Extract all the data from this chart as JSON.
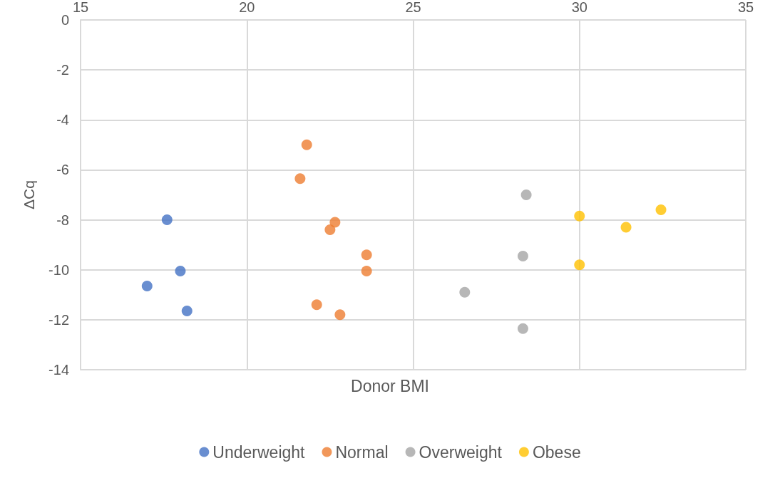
{
  "chart_data": {
    "type": "scatter",
    "xlabel": "Donor BMI",
    "ylabel": "ΔCq",
    "xlim": [
      15,
      35
    ],
    "xticks": [
      15,
      20,
      25,
      30,
      35
    ],
    "ylim": [
      -14,
      0
    ],
    "yticks": [
      -14,
      -12,
      -10,
      -8,
      -6,
      -4,
      -2,
      0
    ],
    "grid": true,
    "legend": "bottom",
    "marker": "circle",
    "series": [
      {
        "name": "Underweight",
        "color": "#4472c4",
        "x": [
          17.6,
          18.0,
          17.0,
          18.2
        ],
        "values": [
          -8.0,
          -10.05,
          -10.65,
          -11.65
        ]
      },
      {
        "name": "Normal",
        "color": "#ed7d31",
        "x": [
          21.8,
          21.6,
          22.65,
          22.5,
          23.6,
          23.6,
          22.1,
          22.8
        ],
        "values": [
          -5.0,
          -6.35,
          -8.1,
          -8.4,
          -9.4,
          -10.05,
          -11.4,
          -11.8
        ]
      },
      {
        "name": "Overweight",
        "color": "#a5a5a5",
        "x": [
          28.4,
          28.3,
          26.55,
          28.3
        ],
        "values": [
          -7.0,
          -9.45,
          -10.9,
          -12.35
        ]
      },
      {
        "name": "Obese",
        "color": "#ffc000",
        "x": [
          30.0,
          32.45,
          31.4,
          30.0
        ],
        "values": [
          -7.85,
          -7.6,
          -8.3,
          -9.8
        ]
      }
    ]
  }
}
